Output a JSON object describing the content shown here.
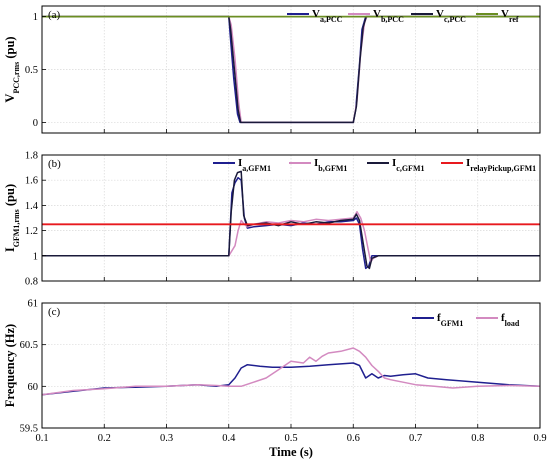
{
  "chart_data": [
    {
      "type": "line",
      "panel_label": "(a)",
      "xlim": [
        0.1,
        0.9
      ],
      "ylim": [
        -0.1,
        1.1
      ],
      "yticks": [
        0,
        0.5,
        1
      ],
      "ylabel_main": "V",
      "ylabel_sub": "PCC,rms",
      "ylabel_unit": " (pu)",
      "grid": true,
      "legend": "top-right",
      "series": [
        {
          "name_main": "V",
          "name_sub": "a,PCC",
          "color": "#1f1f8f",
          "x": [
            0.1,
            0.4,
            0.402,
            0.408,
            0.414,
            0.418,
            0.6,
            0.604,
            0.61,
            0.614,
            0.62,
            0.9
          ],
          "y": [
            1.0,
            1.0,
            0.85,
            0.42,
            0.08,
            0.0,
            0.0,
            0.12,
            0.55,
            0.88,
            1.0,
            1.0
          ]
        },
        {
          "name_main": "V",
          "name_sub": "b,PCC",
          "color": "#d38ac0",
          "x": [
            0.1,
            0.4,
            0.404,
            0.41,
            0.416,
            0.42,
            0.6,
            0.606,
            0.612,
            0.618,
            0.622,
            0.9
          ],
          "y": [
            1.0,
            1.0,
            0.92,
            0.6,
            0.18,
            0.0,
            0.0,
            0.2,
            0.66,
            0.94,
            1.0,
            1.0
          ]
        },
        {
          "name_main": "V",
          "name_sub": "c,PCC",
          "color": "#1a1a3a",
          "x": [
            0.1,
            0.4,
            0.403,
            0.409,
            0.415,
            0.419,
            0.6,
            0.605,
            0.611,
            0.616,
            0.621,
            0.9
          ],
          "y": [
            1.0,
            1.0,
            0.88,
            0.5,
            0.12,
            0.0,
            0.0,
            0.15,
            0.6,
            0.9,
            1.0,
            1.0
          ]
        },
        {
          "name_main": "V",
          "name_sub": "ref",
          "color": "#6b8e23",
          "x": [
            0.1,
            0.9
          ],
          "y": [
            1.0,
            1.0
          ]
        }
      ]
    },
    {
      "type": "line",
      "panel_label": "(b)",
      "xlim": [
        0.1,
        0.9
      ],
      "ylim": [
        0.8,
        1.8
      ],
      "yticks": [
        0.8,
        1,
        1.2,
        1.4,
        1.6,
        1.8
      ],
      "ylabel_main": "I",
      "ylabel_sub": "GFM1,rms",
      "ylabel_unit": " (pu)",
      "grid": true,
      "legend": "top",
      "series": [
        {
          "name_main": "I",
          "name_sub": "a,GFM1",
          "color": "#1f1f8f",
          "x": [
            0.1,
            0.4,
            0.405,
            0.41,
            0.415,
            0.42,
            0.425,
            0.43,
            0.44,
            0.46,
            0.48,
            0.5,
            0.52,
            0.54,
            0.56,
            0.58,
            0.6,
            0.605,
            0.61,
            0.615,
            0.62,
            0.625,
            0.63,
            0.64,
            0.66,
            0.9
          ],
          "y": [
            1.0,
            1.0,
            1.5,
            1.58,
            1.62,
            1.6,
            1.3,
            1.22,
            1.23,
            1.24,
            1.25,
            1.24,
            1.26,
            1.25,
            1.27,
            1.27,
            1.28,
            1.3,
            1.25,
            1.05,
            0.9,
            0.92,
            1.0,
            1.0,
            1.0,
            1.0
          ]
        },
        {
          "name_main": "I",
          "name_sub": "b,GFM1",
          "color": "#d38ac0",
          "x": [
            0.1,
            0.4,
            0.41,
            0.415,
            0.42,
            0.425,
            0.43,
            0.44,
            0.46,
            0.48,
            0.5,
            0.52,
            0.54,
            0.56,
            0.58,
            0.6,
            0.606,
            0.612,
            0.618,
            0.624,
            0.628,
            0.632,
            0.64,
            0.9
          ],
          "y": [
            1.0,
            1.0,
            1.08,
            1.2,
            1.28,
            1.25,
            1.23,
            1.25,
            1.27,
            1.26,
            1.28,
            1.27,
            1.29,
            1.28,
            1.29,
            1.3,
            1.35,
            1.3,
            1.2,
            1.05,
            0.95,
            0.98,
            1.0,
            1.0
          ]
        },
        {
          "name_main": "I",
          "name_sub": "c,GFM1",
          "color": "#1a1a3a",
          "x": [
            0.1,
            0.4,
            0.404,
            0.409,
            0.414,
            0.42,
            0.424,
            0.43,
            0.44,
            0.46,
            0.48,
            0.5,
            0.52,
            0.54,
            0.56,
            0.58,
            0.6,
            0.605,
            0.61,
            0.616,
            0.622,
            0.626,
            0.63,
            0.64,
            0.9
          ],
          "y": [
            1.0,
            1.0,
            1.35,
            1.6,
            1.66,
            1.67,
            1.32,
            1.24,
            1.25,
            1.26,
            1.24,
            1.27,
            1.25,
            1.27,
            1.26,
            1.28,
            1.29,
            1.33,
            1.28,
            1.1,
            0.92,
            0.9,
            0.98,
            1.0,
            1.0
          ]
        },
        {
          "name_main": "I",
          "name_sub": "relayPickup,GFM1",
          "color": "#e8191e",
          "x": [
            0.1,
            0.9
          ],
          "y": [
            1.25,
            1.25
          ]
        }
      ]
    },
    {
      "type": "line",
      "panel_label": "(c)",
      "xlim": [
        0.1,
        0.9
      ],
      "ylim": [
        59.5,
        61
      ],
      "yticks": [
        59.5,
        60,
        60.5,
        61
      ],
      "xticks": [
        0.1,
        0.2,
        0.3,
        0.4,
        0.5,
        0.6,
        0.7,
        0.8,
        0.9
      ],
      "ylabel_main": "Frequency (Hz)",
      "xlabel": "Time (s)",
      "grid": true,
      "legend": "top-right",
      "series": [
        {
          "name_main": "f",
          "name_sub": "GFM1",
          "color": "#1f1f8f",
          "x": [
            0.1,
            0.15,
            0.2,
            0.25,
            0.3,
            0.35,
            0.38,
            0.4,
            0.41,
            0.42,
            0.43,
            0.45,
            0.47,
            0.5,
            0.53,
            0.56,
            0.6,
            0.61,
            0.62,
            0.63,
            0.64,
            0.65,
            0.66,
            0.68,
            0.7,
            0.72,
            0.75,
            0.8,
            0.85,
            0.9
          ],
          "y": [
            59.9,
            59.94,
            59.98,
            59.99,
            60.0,
            60.02,
            60.0,
            60.02,
            60.1,
            60.22,
            60.26,
            60.24,
            60.23,
            60.23,
            60.24,
            60.26,
            60.28,
            60.25,
            60.1,
            60.15,
            60.1,
            60.13,
            60.12,
            60.14,
            60.15,
            60.1,
            60.08,
            60.05,
            60.02,
            60.0
          ]
        },
        {
          "name_main": "f",
          "name_sub": "load",
          "color": "#d38ac0",
          "x": [
            0.1,
            0.15,
            0.2,
            0.25,
            0.3,
            0.35,
            0.38,
            0.4,
            0.42,
            0.44,
            0.46,
            0.48,
            0.5,
            0.52,
            0.53,
            0.54,
            0.55,
            0.56,
            0.58,
            0.6,
            0.61,
            0.62,
            0.63,
            0.64,
            0.65,
            0.66,
            0.68,
            0.7,
            0.73,
            0.76,
            0.8,
            0.85,
            0.9
          ],
          "y": [
            59.9,
            59.95,
            59.97,
            60.0,
            60.0,
            60.02,
            60.01,
            60.0,
            60.0,
            60.05,
            60.1,
            60.2,
            60.3,
            60.28,
            60.35,
            60.3,
            60.36,
            60.4,
            60.42,
            60.46,
            60.42,
            60.35,
            60.25,
            60.18,
            60.1,
            60.08,
            60.05,
            60.02,
            60.0,
            59.98,
            60.0,
            60.01,
            60.0
          ]
        }
      ]
    }
  ]
}
